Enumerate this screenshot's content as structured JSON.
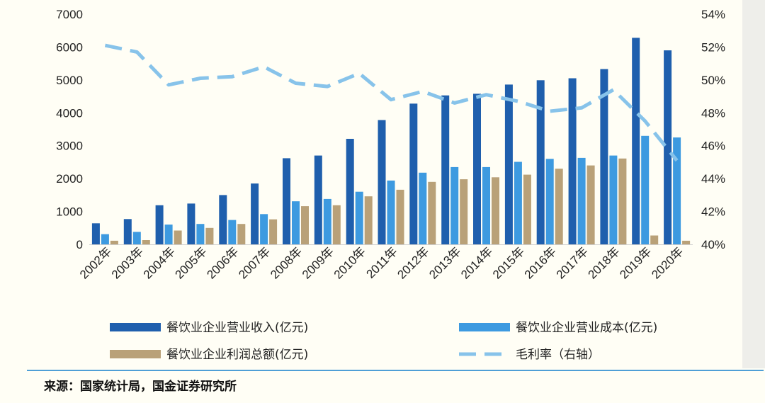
{
  "chart_data": {
    "type": "bar",
    "categories": [
      "2002年",
      "2003年",
      "2004年",
      "2005年",
      "2006年",
      "2007年",
      "2008年",
      "2009年",
      "2010年",
      "2011年",
      "2012年",
      "2013年",
      "2014年",
      "2015年",
      "2016年",
      "2017年",
      "2018年",
      "2019年",
      "2020年"
    ],
    "series": [
      {
        "name": "餐饮业企业营业收入(亿元)",
        "type": "bar",
        "axis": "left",
        "color": "#1f5fad",
        "values": [
          640,
          770,
          1190,
          1240,
          1500,
          1850,
          2620,
          2700,
          3210,
          3780,
          4280,
          4530,
          4580,
          4860,
          4990,
          5050,
          5330,
          6280,
          5900
        ]
      },
      {
        "name": "餐饮业企业营业成本(亿元)",
        "type": "bar",
        "axis": "left",
        "color": "#3d9ae0",
        "values": [
          310,
          380,
          600,
          620,
          740,
          920,
          1310,
          1380,
          1600,
          1940,
          2180,
          2350,
          2350,
          2510,
          2600,
          2630,
          2700,
          3300,
          3250
        ]
      },
      {
        "name": "餐饮业企业利润总额(亿元)",
        "type": "bar",
        "axis": "left",
        "color": "#b9a178",
        "values": [
          110,
          130,
          420,
          500,
          620,
          760,
          1160,
          1190,
          1460,
          1660,
          1900,
          1980,
          2040,
          2120,
          2300,
          2400,
          2610,
          270,
          110
        ]
      },
      {
        "name": "毛利率（右轴）",
        "type": "line",
        "axis": "right",
        "color": "#87c3ea",
        "dashed": true,
        "values": [
          52.1,
          51.7,
          49.7,
          50.1,
          50.2,
          50.8,
          49.8,
          49.6,
          50.4,
          48.8,
          49.3,
          48.6,
          49.1,
          48.7,
          48.1,
          48.3,
          49.4,
          47.5,
          45.1
        ]
      }
    ],
    "y_left": {
      "min": 0,
      "max": 7000,
      "ticks": [
        "0",
        "1000",
        "2000",
        "3000",
        "4000",
        "5000",
        "6000",
        "7000"
      ]
    },
    "y_right": {
      "min": 40,
      "max": 54,
      "ticks": [
        "40%",
        "42%",
        "44%",
        "46%",
        "48%",
        "50%",
        "52%",
        "54%"
      ]
    },
    "grid": false,
    "legend_position": "bottom",
    "source": "来源：国家统计局，国金证券研究所"
  }
}
